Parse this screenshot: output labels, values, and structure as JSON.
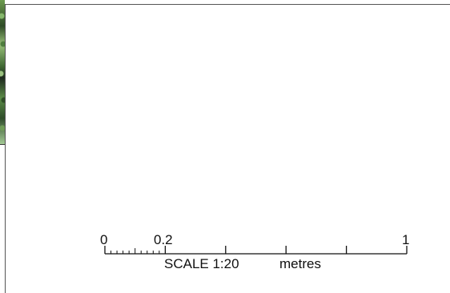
{
  "scale_bar": {
    "zero_label": "0",
    "minor_end_label": "0.2",
    "end_label": "1",
    "scale_text": "SCALE 1:20",
    "units_text": "metres",
    "range": [
      0,
      1
    ],
    "minor_divisions": 10,
    "major_ticks": [
      0,
      0.2,
      0.4,
      0.6,
      0.8,
      1
    ]
  }
}
